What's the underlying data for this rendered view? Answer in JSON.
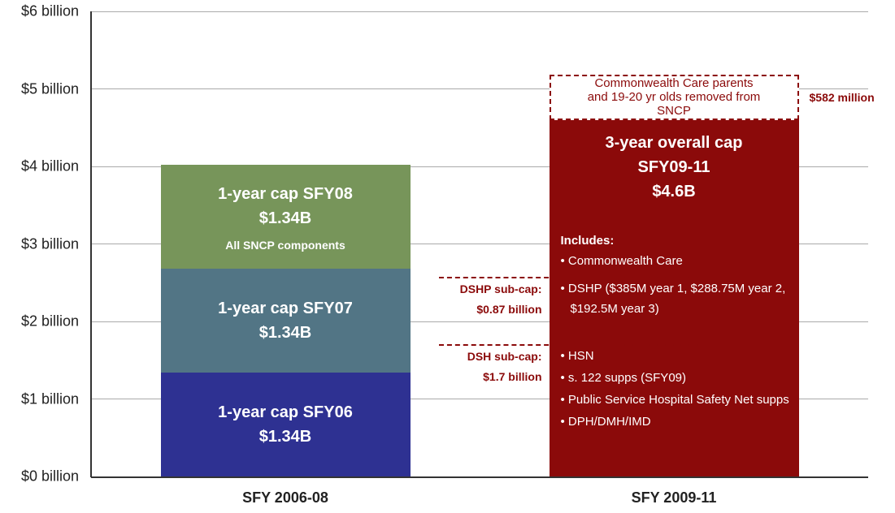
{
  "chart_data": {
    "type": "bar",
    "stacked": true,
    "categories": [
      "SFY 2006-08",
      "SFY 2009-11"
    ],
    "ylim": [
      0,
      6
    ],
    "yticks": [
      {
        "value": 0,
        "label": "$0 billion"
      },
      {
        "value": 1,
        "label": "$1 billion"
      },
      {
        "value": 2,
        "label": "$2 billion"
      },
      {
        "value": 3,
        "label": "$3 billion"
      },
      {
        "value": 4,
        "label": "$4 billion"
      },
      {
        "value": 5,
        "label": "$5 billion"
      },
      {
        "value": 6,
        "label": "$6 billion"
      }
    ],
    "grid": true,
    "series": [
      {
        "name": "1-year cap SFY06",
        "color": "#2e3192",
        "values": [
          1.34,
          null
        ],
        "value_labels": [
          "$1.34B",
          null
        ]
      },
      {
        "name": "1-year cap SFY07",
        "color": "#527585",
        "values": [
          1.34,
          null
        ],
        "value_labels": [
          "$1.34B",
          null
        ]
      },
      {
        "name": "1-year cap SFY08",
        "color": "#77955a",
        "values": [
          1.34,
          null
        ],
        "value_labels": [
          "$1.34B",
          null
        ],
        "annotation": "All SNCP components"
      },
      {
        "name": "3-year overall cap SFY09-11",
        "color": "#8b0a0a",
        "values": [
          null,
          4.6
        ],
        "value_labels": [
          null,
          "$4.6B"
        ],
        "includes": {
          "label": "Includes:",
          "items": [
            "Commonwealth Care"
          ]
        },
        "subcaps": [
          {
            "label": "DSH sub-cap:",
            "value": 1.7,
            "value_label": "$1.7 billion",
            "items": [
              "HSN",
              "s. 122 supps (SFY09)",
              "Public Service Hospital Safety Net supps",
              "DPH/DMH/IMD"
            ]
          },
          {
            "label": "DSHP sub-cap:",
            "value": 0.87,
            "value_label": "$0.87 billion",
            "items": [
              "DSHP ($385M year 1, $288.75M year 2, $192.5M year 3)"
            ]
          }
        ]
      },
      {
        "name": "Commonwealth Care parents and 19-20 yr olds removed from SNCP",
        "color": "#8b0a0a",
        "style": "dashed",
        "values": [
          null,
          0.582
        ],
        "value_labels": [
          null,
          "$582 million"
        ]
      }
    ]
  }
}
